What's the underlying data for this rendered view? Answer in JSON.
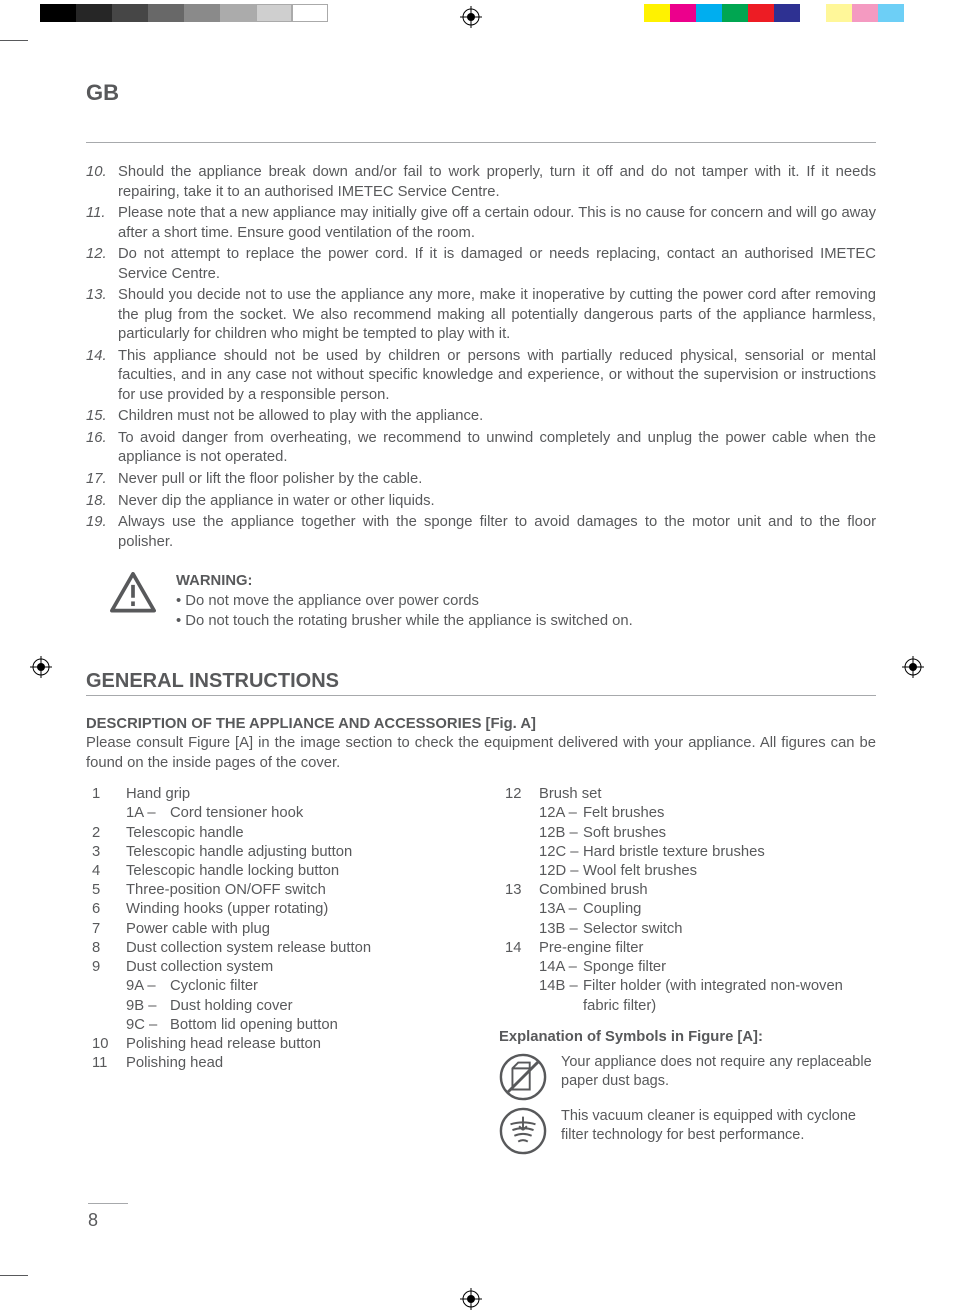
{
  "registration_marks": {
    "color": "#000000"
  },
  "color_bar": {
    "grays": [
      "#000000",
      "#262626",
      "#464646",
      "#686868",
      "#8a8a8a",
      "#ababab",
      "#cfcfcf",
      "#ffffff"
    ],
    "colors": [
      "#fff200",
      "#ec008c",
      "#00aeef",
      "#00a651",
      "#ed1c24",
      "#2e3192",
      "#fbb040",
      "#f49ac1",
      "#8dc63f",
      "#00adee"
    ]
  },
  "country_code": "GB",
  "numbered": [
    {
      "n": "10.",
      "t": "Should the appliance break down and/or fail to work properly, turn it off and do not tamper with it. If it needs repairing, take it to an authorised IMETEC Service Centre."
    },
    {
      "n": "11.",
      "t": "Please note that a new appliance may initially give off a certain odour. This is no cause for concern and will go away after a short time. Ensure good ventilation of the room."
    },
    {
      "n": "12.",
      "t": "Do not attempt to replace the power cord. If it is damaged or needs replacing, contact an authorised IMETEC Service Centre."
    },
    {
      "n": "13.",
      "t": "Should you decide not to use the appliance any more, make it inoperative by cutting the power cord after removing the plug from the socket. We also recommend making all potentially dangerous parts of the appliance harmless, particularly for children who might be tempted to play with it."
    },
    {
      "n": "14.",
      "t": "This appliance should not be used by children or persons with partially reduced physical, sensorial or mental faculties, and in any case not without specific knowledge and experience, or without the supervision or instructions for use provided by a responsible person."
    },
    {
      "n": "15.",
      "t": "Children must not be allowed to play with the appliance."
    },
    {
      "n": "16.",
      "t": "To avoid danger from overheating, we recommend to unwind completely and unplug the power cable when the appliance is not operated."
    },
    {
      "n": "17.",
      "t": "Never pull or lift the floor polisher by the cable."
    },
    {
      "n": "18.",
      "t": "Never dip the appliance in water or other liquids."
    },
    {
      "n": "19.",
      "t": "Always use the appliance together with the sponge filter to avoid damages to the motor unit and to the floor polisher."
    }
  ],
  "warning": {
    "label": "WARNING:",
    "b1": "• Do not move the appliance over power cords",
    "b2": "• Do not touch the rotating brusher while the appliance is switched on."
  },
  "section_title": "GENERAL INSTRUCTIONS",
  "desc_h": "DESCRIPTION OF THE APPLIANCE AND ACCESSORIES [Fig. A]",
  "desc_p": "Please consult Figure [A] in the image section to check the equipment delivered with your appliance. All figures can be found on the inside pages of the cover.",
  "left": [
    {
      "n": "1",
      "t": "Hand grip",
      "sub": [
        {
          "l": "1A –",
          "t": "Cord tensioner hook"
        }
      ]
    },
    {
      "n": "2",
      "t": "Telescopic handle"
    },
    {
      "n": "3",
      "t": "Telescopic handle adjusting button"
    },
    {
      "n": "4",
      "t": "Telescopic handle locking button"
    },
    {
      "n": "5",
      "t": "Three-position ON/OFF switch"
    },
    {
      "n": "6",
      "t": "Winding hooks (upper rotating)"
    },
    {
      "n": "7",
      "t": "Power cable with plug"
    },
    {
      "n": "8",
      "t": "Dust collection system release button"
    },
    {
      "n": "9",
      "t": "Dust collection system",
      "sub": [
        {
          "l": "9A –",
          "t": "Cyclonic filter"
        },
        {
          "l": "9B –",
          "t": "Dust holding cover"
        },
        {
          "l": "9C –",
          "t": "Bottom lid opening button"
        }
      ]
    },
    {
      "n": "10",
      "t": "Polishing head release button"
    },
    {
      "n": "11",
      "t": "Polishing head"
    }
  ],
  "right": [
    {
      "n": "12",
      "t": "Brush set",
      "sub": [
        {
          "l": "12A –",
          "t": "Felt brushes"
        },
        {
          "l": "12B –",
          "t": "Soft brushes"
        },
        {
          "l": "12C –",
          "t": "Hard bristle texture brushes"
        },
        {
          "l": "12D –",
          "t": "Wool felt brushes"
        }
      ]
    },
    {
      "n": "13",
      "t": "Combined brush",
      "sub": [
        {
          "l": "13A –",
          "t": "Coupling"
        },
        {
          "l": "13B –",
          "t": "Selector switch"
        }
      ]
    },
    {
      "n": "14",
      "t": "Pre-engine filter",
      "sub": [
        {
          "l": "14A –",
          "t": "Sponge filter"
        },
        {
          "l": "14B –",
          "t": "Filter holder (with integrated non-woven fabric filter)"
        }
      ]
    }
  ],
  "expl_h": "Explanation of Symbols in Figure [A]:",
  "expl1": "Your appliance does not require any replaceable paper dust bags.",
  "expl2": "This vacuum cleaner is equipped with cyclone filter technology for best performance.",
  "page_number": "8"
}
